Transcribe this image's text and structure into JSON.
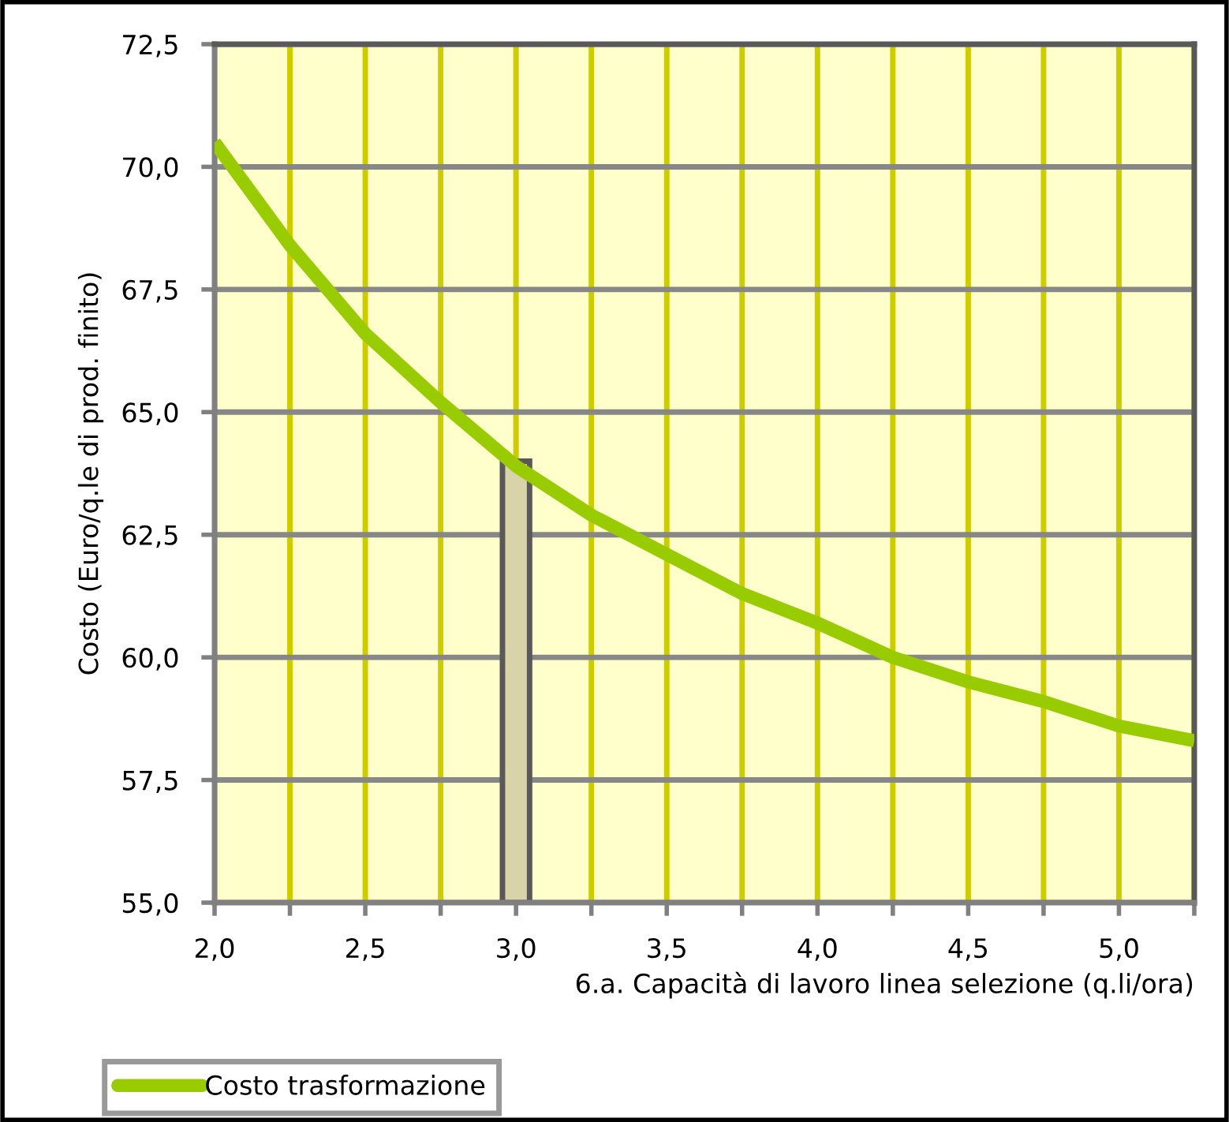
{
  "chart_data": {
    "type": "line",
    "xlabel": "6.a. Capacità di lavoro linea selezione (q.li/ora)",
    "ylabel": "Costo (Euro/q.le di prod. finito)",
    "series": [
      {
        "name": "Costo trasformazione",
        "color": "#99cc00",
        "x": [
          2.0,
          2.25,
          2.5,
          2.75,
          3.0,
          3.25,
          3.5,
          3.75,
          4.0,
          4.25,
          4.5,
          4.75,
          5.0,
          5.25
        ],
        "values": [
          70.5,
          68.4,
          66.6,
          65.2,
          63.9,
          62.9,
          62.1,
          61.3,
          60.7,
          60.0,
          59.5,
          59.1,
          58.6,
          58.3
        ]
      },
      {
        "type": "bar",
        "color": "#d8d3a8",
        "x": [
          3.0
        ],
        "base": [
          55.0
        ],
        "values": [
          9.0
        ]
      }
    ],
    "xlim": [
      2.0,
      5.25
    ],
    "xticks": [
      {
        "value": 2.0,
        "label": "2,0"
      },
      {
        "value": 2.25,
        "label": null
      },
      {
        "value": 2.5,
        "label": "2,5"
      },
      {
        "value": 2.75,
        "label": null
      },
      {
        "value": 3.0,
        "label": "3,0"
      },
      {
        "value": 3.25,
        "label": null
      },
      {
        "value": 3.5,
        "label": "3,5"
      },
      {
        "value": 3.75,
        "label": null
      },
      {
        "value": 4.0,
        "label": "4,0"
      },
      {
        "value": 4.25,
        "label": null
      },
      {
        "value": 4.5,
        "label": "4,5"
      },
      {
        "value": 4.75,
        "label": null
      },
      {
        "value": 5.0,
        "label": "5,0"
      },
      {
        "value": 5.25,
        "label": null
      }
    ],
    "ylim": [
      55.0,
      72.5
    ],
    "yticks": [
      {
        "value": 55.0,
        "label": "55,0"
      },
      {
        "value": 57.5,
        "label": "57,5"
      },
      {
        "value": 60.0,
        "label": "60,0"
      },
      {
        "value": 62.5,
        "label": "62,5"
      },
      {
        "value": 65.0,
        "label": "65,0"
      },
      {
        "value": 67.5,
        "label": "67,5"
      },
      {
        "value": 70.0,
        "label": "70,0"
      },
      {
        "value": 72.5,
        "label": "72,5"
      }
    ],
    "grid": true,
    "legend": "bottom left",
    "marker": "none",
    "line_style": "solid"
  }
}
